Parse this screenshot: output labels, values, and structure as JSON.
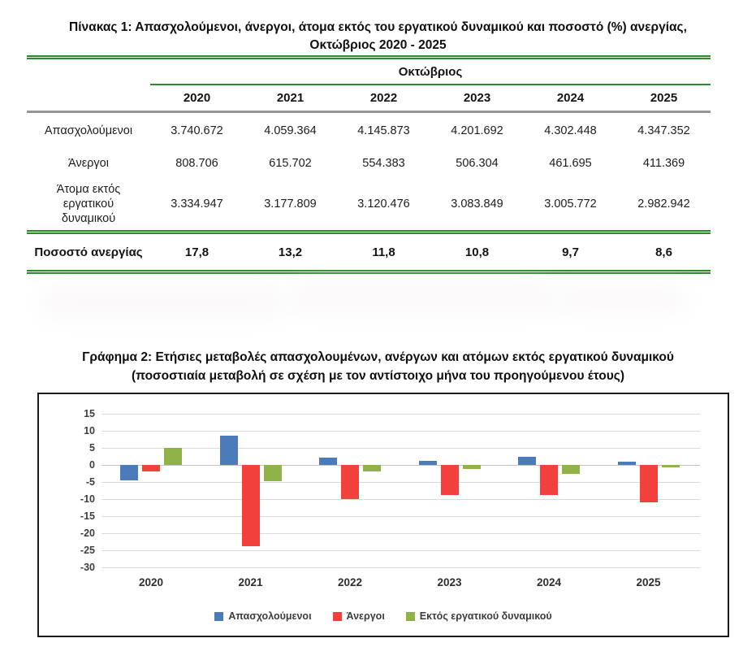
{
  "table": {
    "title_line1": "Πίνακας 1: Απασχολούμενοι, άνεργοι, άτομα εκτός του εργατικού δυναμικού και ποσοστό (%) ανεργίας,",
    "title_line2": "Οκτώβριος 2020 - 2025",
    "group_header": "Οκτώβριος",
    "years": [
      "2020",
      "2021",
      "2022",
      "2023",
      "2024",
      "2025"
    ],
    "rows": [
      {
        "label": "Απασχολούμενοι",
        "values": [
          "3.740.672",
          "4.059.364",
          "4.145.873",
          "4.201.692",
          "4.302.448",
          "4.347.352"
        ]
      },
      {
        "label": "Άνεργοι",
        "values": [
          "808.706",
          "615.702",
          "554.383",
          "506.304",
          "461.695",
          "411.369"
        ]
      },
      {
        "label": "Άτομα εκτός εργατικού δυναμικού",
        "label_lines": [
          "Άτομα εκτός",
          "εργατικού",
          "δυναμικού"
        ],
        "values": [
          "3.334.947",
          "3.177.809",
          "3.120.476",
          "3.083.849",
          "3.005.772",
          "2.982.942"
        ]
      }
    ],
    "footer": {
      "label": "Ποσοστό ανεργίας",
      "values": [
        "17,8",
        "13,2",
        "11,8",
        "10,8",
        "9,7",
        "8,6"
      ]
    }
  },
  "chart": {
    "title_line1": "Γράφημα 2: Ετήσιες μεταβολές απασχολουμένων, ανέργων και ατόμων εκτός εργατικού δυναμικού",
    "title_line2": "(ποσοστιαία μεταβολή σε σχέση με τον αντίστοιχο μήνα του προηγούμενου έτους)"
  },
  "chart_data": {
    "type": "bar",
    "categories": [
      "2020",
      "2021",
      "2022",
      "2023",
      "2024",
      "2025"
    ],
    "series": [
      {
        "name": "Απασχολούμενοι",
        "color": "#4b7bba",
        "values": [
          -4.5,
          8.5,
          2.1,
          1.3,
          2.4,
          1.0
        ]
      },
      {
        "name": "Άνεργοι",
        "color": "#f2413d",
        "values": [
          -2.0,
          -23.9,
          -10.0,
          -8.7,
          -8.8,
          -10.9
        ]
      },
      {
        "name": "Εκτός εργατικού δυναμικού",
        "color": "#90b347",
        "values": [
          4.9,
          -4.7,
          -1.8,
          -1.2,
          -2.5,
          -0.8
        ]
      }
    ],
    "ylim": [
      -30,
      15
    ],
    "ytick_step": 5,
    "grid": true,
    "legend_position": "bottom",
    "colors": {
      "employed": "#4b7bba",
      "unemployed": "#f2413d",
      "outside": "#90b347",
      "rule_green": "#2e8b2c",
      "rule_gray": "#969696"
    }
  }
}
